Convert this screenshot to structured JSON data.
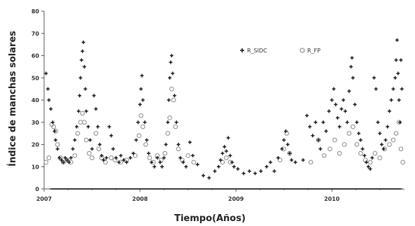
{
  "chart_data": {
    "type": "scatter",
    "xlabel": "Tiempo(Años)",
    "ylabel": "Índice de manchas solares",
    "xlim": [
      2007.0,
      2010.75
    ],
    "ylim": [
      0,
      80
    ],
    "x_ticks": [
      2007,
      2008,
      2009,
      2010
    ],
    "x_tick_labels": [
      "2007",
      "2008",
      "2009",
      "2010"
    ],
    "y_ticks": [
      0,
      10,
      20,
      30,
      40,
      50,
      60,
      70,
      80
    ],
    "y_tick_labels": [
      "0",
      "10",
      "20",
      "30",
      "40",
      "50",
      "60",
      "70",
      "80"
    ],
    "grid": false,
    "legend_position": "top-right",
    "series": [
      {
        "name": "R_SIDC",
        "marker": "plus",
        "color": "#1a1a1a",
        "points": [
          [
            2007.02,
            52
          ],
          [
            2007.04,
            45
          ],
          [
            2007.05,
            40
          ],
          [
            2007.07,
            36
          ],
          [
            2007.09,
            30
          ],
          [
            2007.11,
            26
          ],
          [
            2007.12,
            22
          ],
          [
            2007.14,
            18
          ],
          [
            2007.16,
            14
          ],
          [
            2007.18,
            13
          ],
          [
            2007.2,
            12
          ],
          [
            2007.22,
            14
          ],
          [
            2007.24,
            13
          ],
          [
            2007.26,
            12
          ],
          [
            2007.28,
            14
          ],
          [
            2007.3,
            18
          ],
          [
            2007.32,
            22
          ],
          [
            2007.34,
            28
          ],
          [
            2007.36,
            35
          ],
          [
            2007.37,
            42
          ],
          [
            2007.38,
            50
          ],
          [
            2007.39,
            58
          ],
          [
            2007.4,
            62
          ],
          [
            2007.41,
            66
          ],
          [
            2007.42,
            55
          ],
          [
            2007.43,
            45
          ],
          [
            2007.44,
            35
          ],
          [
            2007.46,
            28
          ],
          [
            2007.48,
            22
          ],
          [
            2007.5,
            18
          ],
          [
            2007.52,
            42
          ],
          [
            2007.54,
            36
          ],
          [
            2007.56,
            28
          ],
          [
            2007.58,
            20
          ],
          [
            2007.6,
            15
          ],
          [
            2007.62,
            13
          ],
          [
            2007.65,
            14
          ],
          [
            2007.68,
            28
          ],
          [
            2007.7,
            24
          ],
          [
            2007.72,
            18
          ],
          [
            2007.75,
            14
          ],
          [
            2007.78,
            12
          ],
          [
            2007.8,
            15
          ],
          [
            2007.83,
            13
          ],
          [
            2007.86,
            12
          ],
          [
            2007.9,
            14
          ],
          [
            2007.93,
            16
          ],
          [
            2007.96,
            22
          ],
          [
            2007.98,
            30
          ],
          [
            2008.0,
            38
          ],
          [
            2008.01,
            45
          ],
          [
            2008.02,
            51
          ],
          [
            2008.03,
            40
          ],
          [
            2008.05,
            30
          ],
          [
            2008.07,
            22
          ],
          [
            2008.09,
            16
          ],
          [
            2008.12,
            12
          ],
          [
            2008.15,
            10
          ],
          [
            2008.18,
            14
          ],
          [
            2008.21,
            12
          ],
          [
            2008.23,
            10
          ],
          [
            2008.25,
            14
          ],
          [
            2008.27,
            20
          ],
          [
            2008.29,
            30
          ],
          [
            2008.3,
            40
          ],
          [
            2008.31,
            50
          ],
          [
            2008.32,
            57
          ],
          [
            2008.33,
            60
          ],
          [
            2008.34,
            52
          ],
          [
            2008.36,
            42
          ],
          [
            2008.38,
            30
          ],
          [
            2008.4,
            20
          ],
          [
            2008.42,
            14
          ],
          [
            2008.45,
            12
          ],
          [
            2008.48,
            10
          ],
          [
            2008.52,
            21
          ],
          [
            2008.55,
            15
          ],
          [
            2008.6,
            11
          ],
          [
            2008.66,
            6
          ],
          [
            2008.72,
            5
          ],
          [
            2008.78,
            8
          ],
          [
            2008.82,
            10
          ],
          [
            2008.84,
            13
          ],
          [
            2008.86,
            16
          ],
          [
            2008.88,
            19
          ],
          [
            2008.9,
            17
          ],
          [
            2008.92,
            23
          ],
          [
            2008.94,
            15
          ],
          [
            2008.96,
            12
          ],
          [
            2008.98,
            10
          ],
          [
            2009.02,
            9
          ],
          [
            2009.08,
            7
          ],
          [
            2009.14,
            8
          ],
          [
            2009.2,
            7
          ],
          [
            2009.26,
            8
          ],
          [
            2009.32,
            10
          ],
          [
            2009.36,
            12
          ],
          [
            2009.4,
            8
          ],
          [
            2009.44,
            14
          ],
          [
            2009.48,
            18
          ],
          [
            2009.5,
            22
          ],
          [
            2009.52,
            26
          ],
          [
            2009.54,
            20
          ],
          [
            2009.56,
            16
          ],
          [
            2009.58,
            13
          ],
          [
            2009.62,
            12
          ],
          [
            2009.7,
            13
          ],
          [
            2009.74,
            33
          ],
          [
            2009.77,
            28
          ],
          [
            2009.8,
            24
          ],
          [
            2009.83,
            30
          ],
          [
            2009.86,
            22
          ],
          [
            2009.88,
            18
          ],
          [
            2009.91,
            30
          ],
          [
            2009.94,
            26
          ],
          [
            2009.97,
            35
          ],
          [
            2010.0,
            40
          ],
          [
            2010.02,
            45
          ],
          [
            2010.04,
            38
          ],
          [
            2010.06,
            32
          ],
          [
            2010.08,
            28
          ],
          [
            2010.1,
            36
          ],
          [
            2010.12,
            40
          ],
          [
            2010.14,
            35
          ],
          [
            2010.16,
            30
          ],
          [
            2010.18,
            44
          ],
          [
            2010.2,
            55
          ],
          [
            2010.21,
            59
          ],
          [
            2010.22,
            50
          ],
          [
            2010.24,
            38
          ],
          [
            2010.26,
            30
          ],
          [
            2010.28,
            25
          ],
          [
            2010.3,
            22
          ],
          [
            2010.32,
            18
          ],
          [
            2010.34,
            15
          ],
          [
            2010.36,
            12
          ],
          [
            2010.38,
            10
          ],
          [
            2010.4,
            9
          ],
          [
            2010.42,
            14
          ],
          [
            2010.44,
            50
          ],
          [
            2010.46,
            45
          ],
          [
            2010.48,
            30
          ],
          [
            2010.5,
            25
          ],
          [
            2010.52,
            20
          ],
          [
            2010.54,
            18
          ],
          [
            2010.56,
            22
          ],
          [
            2010.58,
            28
          ],
          [
            2010.6,
            35
          ],
          [
            2010.62,
            40
          ],
          [
            2010.64,
            45
          ],
          [
            2010.66,
            50
          ],
          [
            2010.67,
            58
          ],
          [
            2010.68,
            67
          ],
          [
            2010.69,
            52
          ],
          [
            2010.7,
            40
          ],
          [
            2010.71,
            30
          ],
          [
            2010.72,
            58
          ],
          [
            2010.73,
            45
          ]
        ]
      },
      {
        "name": "R_FP",
        "marker": "circle",
        "color": "#9a9a9a",
        "points": [
          [
            2007.02,
            12
          ],
          [
            2007.05,
            14
          ],
          [
            2007.08,
            29
          ],
          [
            2007.1,
            28
          ],
          [
            2007.12,
            26
          ],
          [
            2007.14,
            20
          ],
          [
            2007.17,
            14
          ],
          [
            2007.2,
            12
          ],
          [
            2007.24,
            13
          ],
          [
            2007.28,
            12
          ],
          [
            2007.32,
            15
          ],
          [
            2007.35,
            25
          ],
          [
            2007.38,
            30
          ],
          [
            2007.4,
            34
          ],
          [
            2007.42,
            30
          ],
          [
            2007.44,
            22
          ],
          [
            2007.47,
            16
          ],
          [
            2007.5,
            14
          ],
          [
            2007.54,
            25
          ],
          [
            2007.57,
            18
          ],
          [
            2007.6,
            14
          ],
          [
            2007.64,
            12
          ],
          [
            2007.7,
            14
          ],
          [
            2007.74,
            13
          ],
          [
            2007.8,
            12
          ],
          [
            2007.86,
            13
          ],
          [
            2007.95,
            15
          ],
          [
            2007.99,
            24
          ],
          [
            2008.01,
            33
          ],
          [
            2008.03,
            28
          ],
          [
            2008.06,
            20
          ],
          [
            2008.1,
            14
          ],
          [
            2008.14,
            12
          ],
          [
            2008.18,
            15
          ],
          [
            2008.22,
            13
          ],
          [
            2008.26,
            16
          ],
          [
            2008.29,
            25
          ],
          [
            2008.31,
            32
          ],
          [
            2008.33,
            45
          ],
          [
            2008.35,
            40
          ],
          [
            2008.37,
            28
          ],
          [
            2008.4,
            18
          ],
          [
            2008.44,
            13
          ],
          [
            2008.5,
            15
          ],
          [
            2008.56,
            12
          ],
          [
            2008.86,
            12
          ],
          [
            2008.9,
            14
          ],
          [
            2008.94,
            12
          ],
          [
            2009.46,
            13
          ],
          [
            2009.5,
            18
          ],
          [
            2009.53,
            25
          ],
          [
            2009.56,
            16
          ],
          [
            2009.78,
            12
          ],
          [
            2009.86,
            22
          ],
          [
            2009.92,
            15
          ],
          [
            2009.98,
            18
          ],
          [
            2010.03,
            22
          ],
          [
            2010.08,
            16
          ],
          [
            2010.13,
            20
          ],
          [
            2010.18,
            25
          ],
          [
            2010.22,
            28
          ],
          [
            2010.26,
            20
          ],
          [
            2010.3,
            16
          ],
          [
            2010.35,
            13
          ],
          [
            2010.4,
            12
          ],
          [
            2010.45,
            16
          ],
          [
            2010.5,
            14
          ],
          [
            2010.55,
            18
          ],
          [
            2010.6,
            20
          ],
          [
            2010.64,
            22
          ],
          [
            2010.67,
            25
          ],
          [
            2010.7,
            30
          ],
          [
            2010.72,
            18
          ],
          [
            2010.74,
            12
          ]
        ]
      }
    ]
  }
}
